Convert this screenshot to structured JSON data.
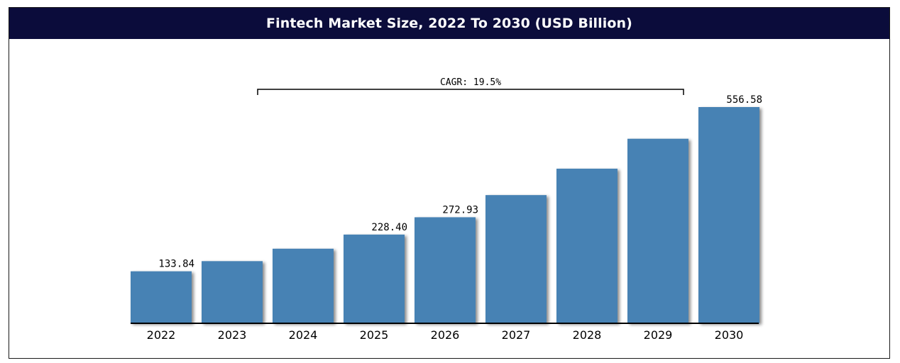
{
  "title": "Fintech Market Size, 2022 To 2030 (USD Billion)",
  "colors": {
    "header_bg": "#0b0c3b",
    "bar": "#4682b4"
  },
  "chart_data": {
    "type": "bar",
    "title": "Fintech Market Size, 2022 To 2030 (USD Billion)",
    "xlabel": "",
    "ylabel": "",
    "categories": [
      "2022",
      "2023",
      "2024",
      "2025",
      "2026",
      "2027",
      "2028",
      "2029",
      "2030"
    ],
    "values": [
      133.84,
      160,
      192,
      228.4,
      272.93,
      330,
      398,
      475,
      556.58
    ],
    "data_labels": [
      "133.84",
      "",
      "",
      "228.40",
      "272.93",
      "",
      "",
      "",
      "556.58"
    ],
    "ylim": [
      0,
      590
    ],
    "grid": false,
    "annotation": {
      "text": "CAGR: 19.5%",
      "from_category": "2024",
      "to_category": "2029"
    }
  }
}
